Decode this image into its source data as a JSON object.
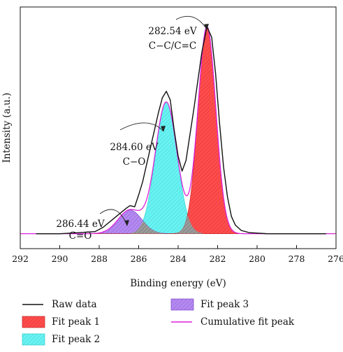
{
  "chart_data": {
    "type": "area",
    "xlabel": "Binding energy (eV)",
    "ylabel": "Intensity (a.u.)",
    "xlim": [
      292,
      276
    ],
    "x_reversed": true,
    "y_axis_tick_labels": false,
    "xticks": [
      292,
      290,
      288,
      286,
      284,
      282,
      280,
      278,
      276
    ],
    "grid": false,
    "legend_position": "bottom",
    "baseline": 0.04,
    "series": [
      {
        "name": "Raw data",
        "kind": "line",
        "color": "#111111",
        "x": [
          291.2,
          290.0,
          289.0,
          288.2,
          287.8,
          287.4,
          287.0,
          286.6,
          286.44,
          286.2,
          286.0,
          285.8,
          285.6,
          285.3,
          285.0,
          284.8,
          284.6,
          284.4,
          284.2,
          284.0,
          283.8,
          283.6,
          283.4,
          283.2,
          283.0,
          282.8,
          282.54,
          282.3,
          282.1,
          281.9,
          281.7,
          281.5,
          281.3,
          281.1,
          280.8,
          280.4,
          279.5,
          278.0,
          276.5
        ],
        "y": [
          0.04,
          0.04,
          0.045,
          0.05,
          0.07,
          0.1,
          0.13,
          0.16,
          0.17,
          0.165,
          0.22,
          0.28,
          0.36,
          0.48,
          0.6,
          0.67,
          0.7,
          0.66,
          0.52,
          0.4,
          0.33,
          0.38,
          0.5,
          0.62,
          0.75,
          0.88,
          1.0,
          0.95,
          0.78,
          0.55,
          0.35,
          0.21,
          0.12,
          0.08,
          0.055,
          0.045,
          0.04,
          0.04,
          0.04
        ]
      },
      {
        "name": "Fit peak 1",
        "kind": "peak",
        "color": "#ff4d4d",
        "center": 282.54,
        "amplitude": 0.96,
        "sigma": 0.45
      },
      {
        "name": "Fit peak 2",
        "kind": "peak",
        "color": "#66f0f0",
        "center": 284.6,
        "amplitude": 0.61,
        "sigma": 0.55
      },
      {
        "name": "Fit peak 3",
        "kind": "peak",
        "color": "#b48af0",
        "center": 286.44,
        "amplitude": 0.11,
        "sigma": 0.6
      },
      {
        "name": "Cumulative fit peak",
        "kind": "cumulative",
        "color": "#dd22dd"
      }
    ],
    "annotations": [
      {
        "lines": [
          "282.54 eV",
          "C−C/C=C"
        ],
        "x": 282.54,
        "y": 1.0
      },
      {
        "lines": [
          "284.60 eV",
          "C−O"
        ],
        "x": 284.6,
        "y": 0.7
      },
      {
        "lines": [
          "286.44 eV",
          "C=O"
        ],
        "x": 286.44,
        "y": 0.17
      }
    ]
  }
}
